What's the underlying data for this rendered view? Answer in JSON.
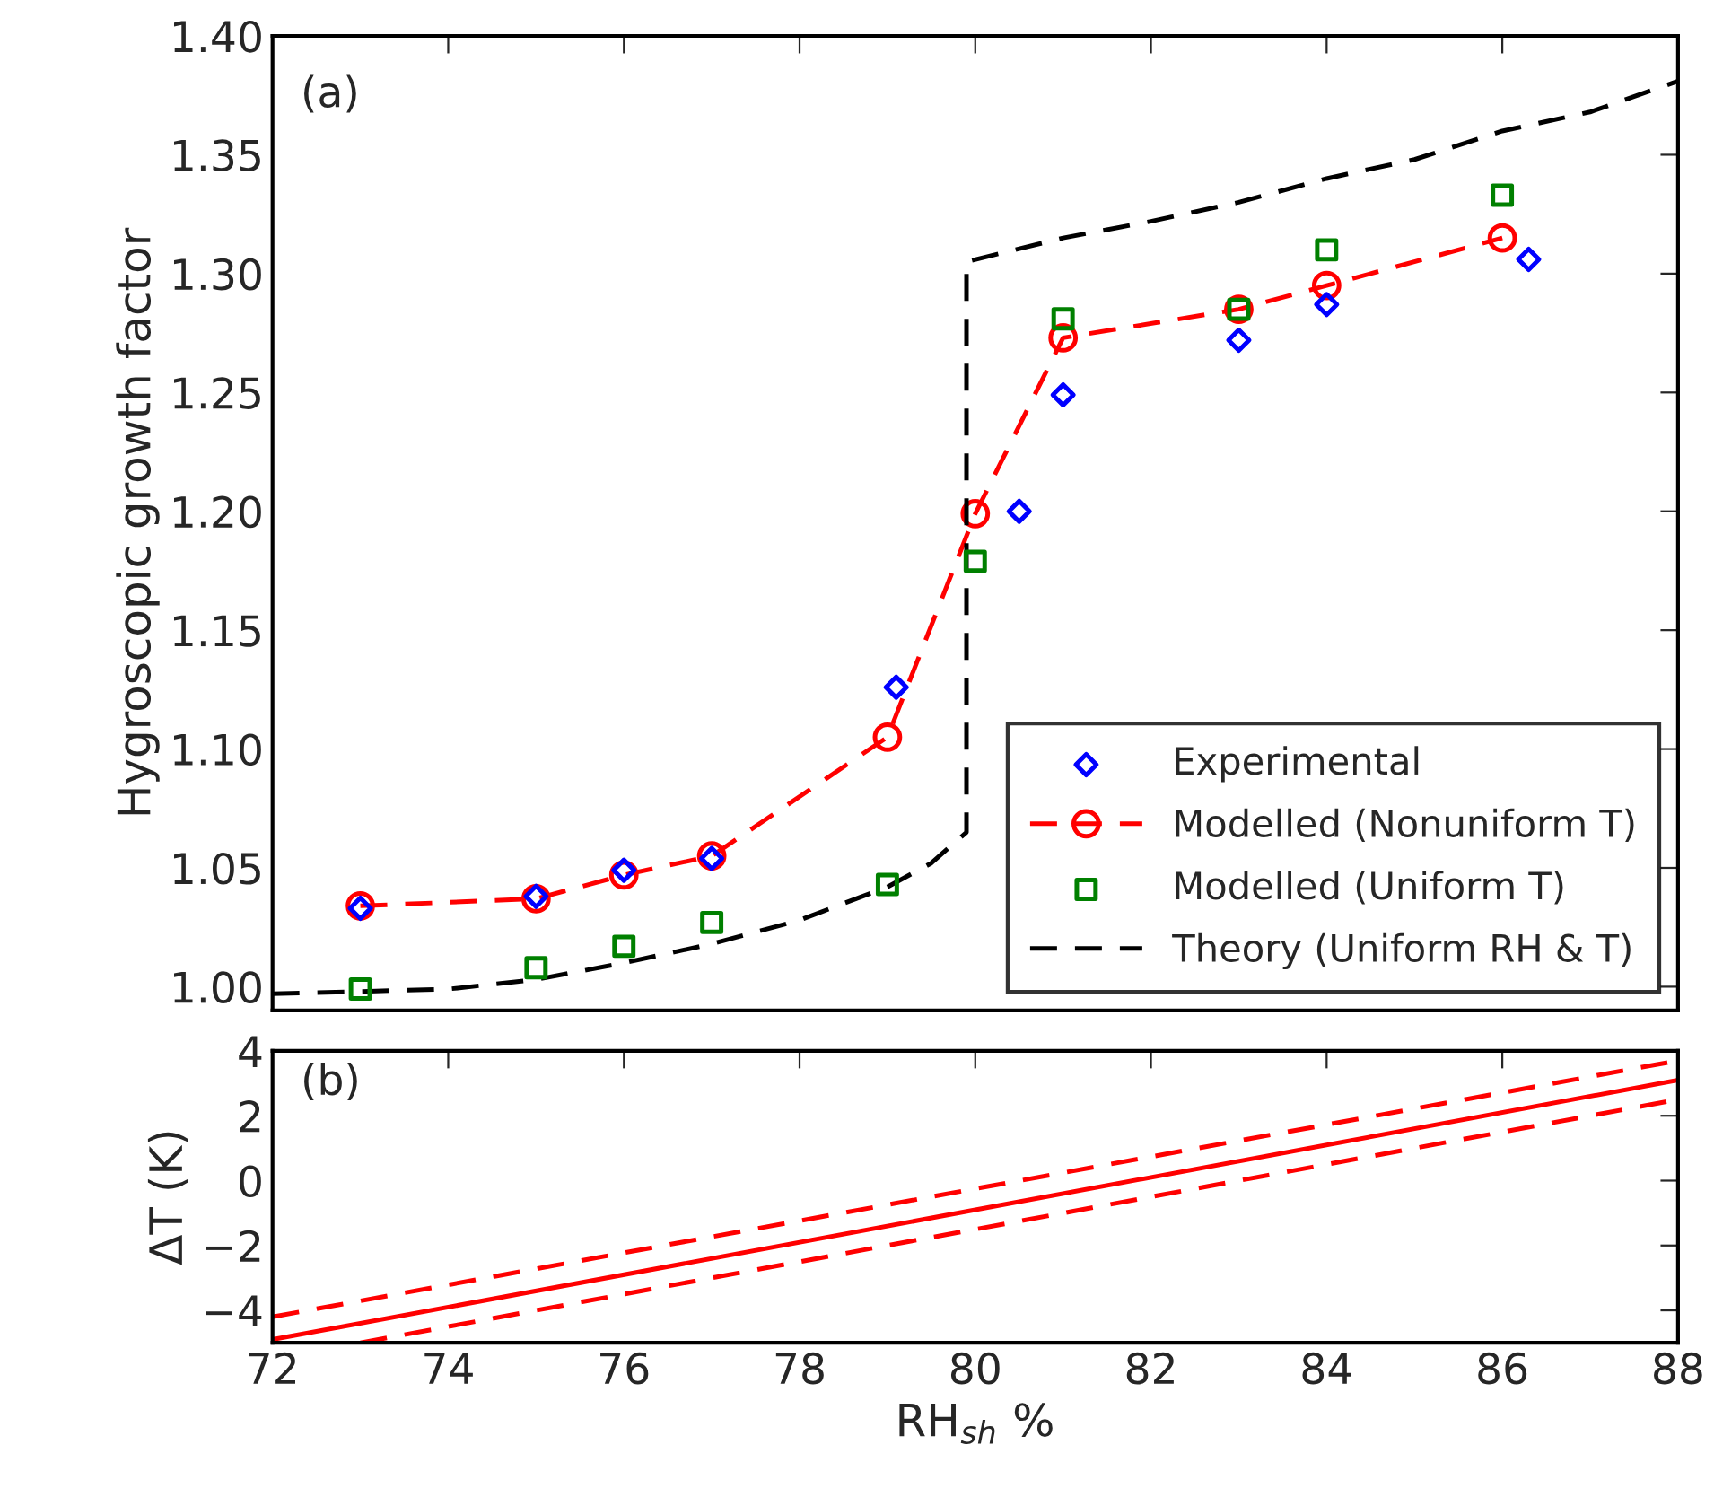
{
  "chart_data": [
    {
      "type": "scatter",
      "ylabel": "Hygroscopic growth factor",
      "annotations": [
        "(a)"
      ],
      "xlim": [
        72,
        88
      ],
      "xticks": [
        72,
        74,
        76,
        78,
        80,
        82,
        84,
        86,
        88
      ],
      "ylim": [
        0.99,
        1.4
      ],
      "yticks": [
        {
          "value": 1.0,
          "label": "1.00"
        },
        1.05,
        {
          "value": 1.1,
          "label": "1.10"
        },
        1.15,
        {
          "value": 1.2,
          "label": "1.20"
        },
        1.25,
        {
          "value": 1.3,
          "label": "1.30"
        },
        1.35,
        {
          "value": 1.4,
          "label": "1.40"
        }
      ],
      "tick_labels": "y",
      "grid": false,
      "legend": "bottom right",
      "series": [
        {
          "name": "Experimental",
          "type": "scatter",
          "marker": "diamond",
          "color": "#0000ff",
          "x": [
            73,
            75,
            76,
            77,
            79.1,
            80.5,
            81,
            83,
            84,
            86.3
          ],
          "values": [
            1.033,
            1.038,
            1.049,
            1.054,
            1.126,
            1.2,
            1.249,
            1.272,
            1.287,
            1.306
          ]
        },
        {
          "name": "Modelled (Nonuniform T)",
          "type": "line",
          "marker": "circle",
          "line_style": "dashed",
          "color": "#ff0000",
          "x": [
            73,
            75,
            76,
            77,
            79,
            80,
            81,
            83,
            84,
            86
          ],
          "values": [
            1.034,
            1.037,
            1.047,
            1.055,
            1.105,
            1.199,
            1.273,
            1.285,
            1.295,
            1.315
          ]
        },
        {
          "name": "Modelled (Uniform T)",
          "type": "scatter",
          "marker": "square",
          "color": "#008000",
          "x": [
            73,
            75,
            76,
            77,
            79,
            80,
            81,
            83,
            84,
            86
          ],
          "values": [
            0.999,
            1.008,
            1.017,
            1.027,
            1.043,
            1.179,
            1.281,
            1.285,
            1.31,
            1.333
          ]
        },
        {
          "name": "Theory (Uniform RH & T)",
          "type": "line",
          "marker": "none",
          "line_style": "dashed",
          "color": "#000000",
          "x": [
            72,
            74,
            75,
            76,
            77,
            78,
            79,
            79.5,
            79.9,
            79.9,
            81,
            82,
            83,
            84,
            85,
            86,
            87,
            88
          ],
          "values": [
            0.997,
            0.999,
            1.003,
            1.01,
            1.018,
            1.028,
            1.042,
            1.052,
            1.065,
            1.305,
            1.315,
            1.322,
            1.33,
            1.34,
            1.348,
            1.36,
            1.368,
            1.381
          ]
        }
      ]
    },
    {
      "type": "line",
      "xlabel": "RH$_{sh}$ %",
      "ylabel": "ΔT (K)",
      "annotations": [
        "(b)"
      ],
      "xlim": [
        72,
        88
      ],
      "xticks": [
        72,
        74,
        76,
        78,
        80,
        82,
        84,
        86,
        88
      ],
      "ylim": [
        -5,
        4
      ],
      "yticks": [
        {
          "value": -4,
          "label": "−4"
        },
        {
          "value": -2,
          "label": "−2"
        },
        0,
        2,
        4
      ],
      "grid": false,
      "legend": false,
      "series": [
        {
          "color": "#ff0000",
          "line_style": "solid",
          "marker": "none",
          "x": [
            72,
            88
          ],
          "values": [
            -4.9,
            3.1
          ]
        },
        {
          "color": "#ff0000",
          "line_style": "dashed",
          "marker": "none",
          "x": [
            72,
            88
          ],
          "values": [
            -4.2,
            3.7
          ]
        },
        {
          "color": "#ff0000",
          "line_style": "dashed",
          "marker": "none",
          "x": [
            73,
            88
          ],
          "values": [
            -5.0,
            2.5
          ]
        }
      ]
    }
  ]
}
